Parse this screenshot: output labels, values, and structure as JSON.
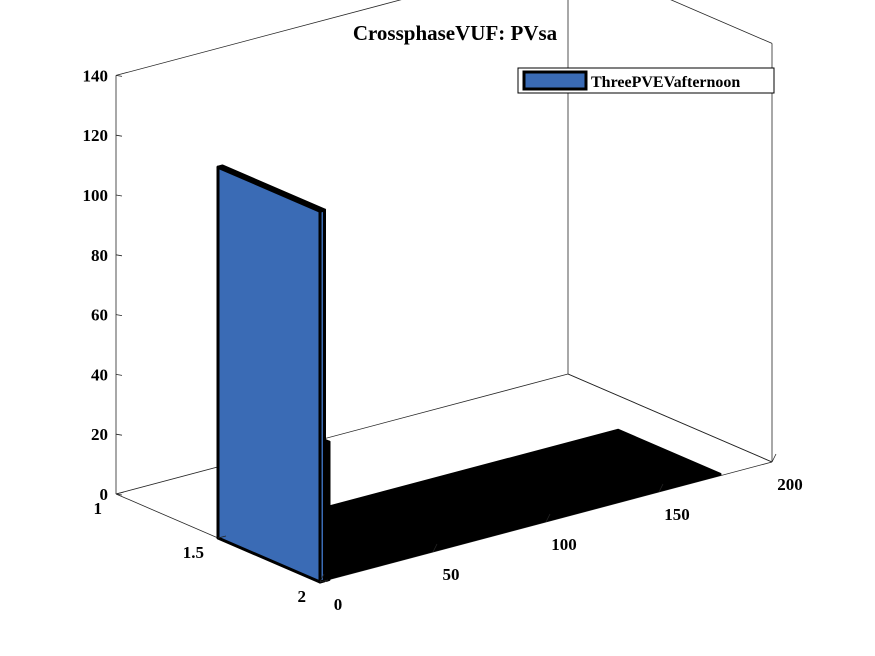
{
  "chart_data": {
    "type": "bar3",
    "title": "CrossphaseVUF: PVsa",
    "xlabel": "",
    "ylabel": "",
    "zlabel": "",
    "x_ticks": [
      "0",
      "50",
      "100",
      "150",
      "200"
    ],
    "y_ticks": [
      "1",
      "1.5",
      "2"
    ],
    "z_ticks": [
      "0",
      "20",
      "40",
      "60",
      "80",
      "100",
      "120",
      "140"
    ],
    "xlim": [
      0,
      200
    ],
    "ylim": [
      1,
      2
    ],
    "zlim": [
      0,
      140
    ],
    "series": [
      {
        "name": "ThreePVEVafternoon",
        "color": "#3a6bb5",
        "edge_color": "#000000",
        "bars": [
          {
            "x": [
              0,
              2
            ],
            "z": 124
          },
          {
            "x": [
              3,
              4
            ],
            "z": 46
          },
          {
            "x": [
              4,
              177
            ],
            "z": 0
          }
        ]
      }
    ],
    "legend_position": "top-right",
    "grid": false
  }
}
